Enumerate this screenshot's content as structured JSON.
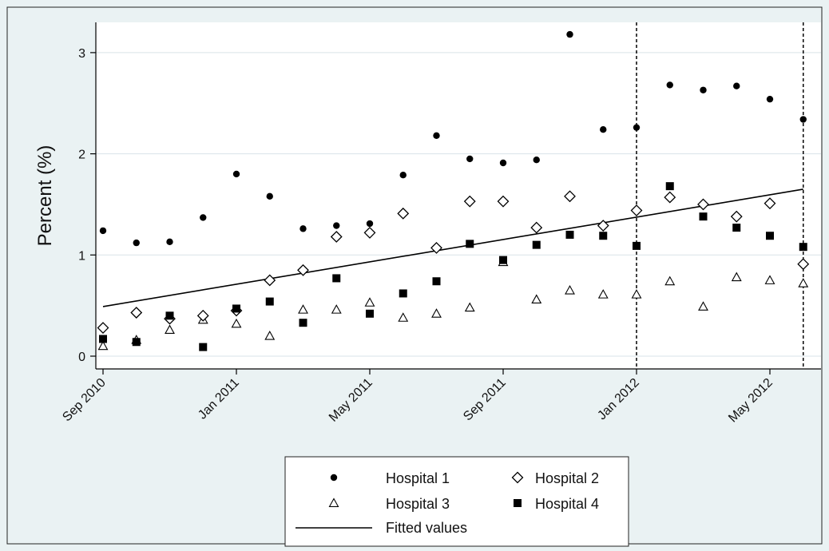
{
  "chart_data": {
    "type": "scatter",
    "title": "",
    "xlabel": "",
    "ylabel": "Percent (%)",
    "xlim": [
      "2010-09",
      "2012-07"
    ],
    "ylim": [
      0,
      3.3
    ],
    "x_ticks": [
      "Sep 2010",
      "Jan 2011",
      "May 2011",
      "Sep 2011",
      "Jan 2012",
      "May 2012"
    ],
    "y_ticks": [
      "0",
      "1",
      "2",
      "3"
    ],
    "grid": "horizontal",
    "legend_position": "bottom",
    "months": [
      "2010-09",
      "2010-10",
      "2010-11",
      "2010-12",
      "2011-01",
      "2011-02",
      "2011-03",
      "2011-04",
      "2011-05",
      "2011-06",
      "2011-07",
      "2011-08",
      "2011-09",
      "2011-10",
      "2011-11",
      "2011-12",
      "2012-01",
      "2012-02",
      "2012-03",
      "2012-04",
      "2012-05",
      "2012-06"
    ],
    "series": [
      {
        "name": "Hospital 1",
        "marker": "circle",
        "values": [
          1.24,
          1.12,
          1.13,
          1.37,
          1.8,
          1.58,
          1.26,
          1.29,
          1.31,
          1.79,
          2.18,
          1.95,
          1.91,
          1.94,
          3.18,
          2.24,
          2.26,
          2.68,
          2.63,
          2.67,
          2.54,
          2.34
        ]
      },
      {
        "name": "Hospital 2",
        "marker": "diamond",
        "values": [
          0.28,
          0.43,
          0.37,
          0.4,
          0.45,
          0.75,
          0.85,
          1.18,
          1.22,
          1.41,
          1.07,
          1.53,
          1.53,
          1.27,
          1.58,
          1.29,
          1.44,
          1.57,
          1.5,
          1.38,
          1.51,
          0.91
        ]
      },
      {
        "name": "Hospital 3",
        "marker": "triangle",
        "values": [
          0.1,
          0.16,
          0.26,
          0.36,
          0.32,
          0.2,
          0.46,
          0.46,
          0.53,
          0.38,
          0.42,
          0.48,
          0.93,
          0.56,
          0.65,
          0.61,
          0.61,
          0.74,
          0.49,
          0.78,
          0.75,
          0.72
        ]
      },
      {
        "name": "Hospital 4",
        "marker": "square",
        "values": [
          0.17,
          0.14,
          0.4,
          0.09,
          0.47,
          0.54,
          0.33,
          0.77,
          0.42,
          0.62,
          0.74,
          1.11,
          0.95,
          1.1,
          1.2,
          1.19,
          1.09,
          1.68,
          1.38,
          1.27,
          1.19,
          1.08
        ]
      }
    ],
    "fitted": {
      "name": "Fitted values",
      "start": [
        "2010-09",
        0.49
      ],
      "end": [
        "2012-06",
        1.65
      ]
    },
    "vlines": [
      "2012-01",
      "2012-06"
    ]
  },
  "colors": {
    "plot_bg": "#ffffff",
    "outer_bg": "#eaf2f3",
    "marker": "#000000",
    "grid": "#d9e3e8"
  }
}
